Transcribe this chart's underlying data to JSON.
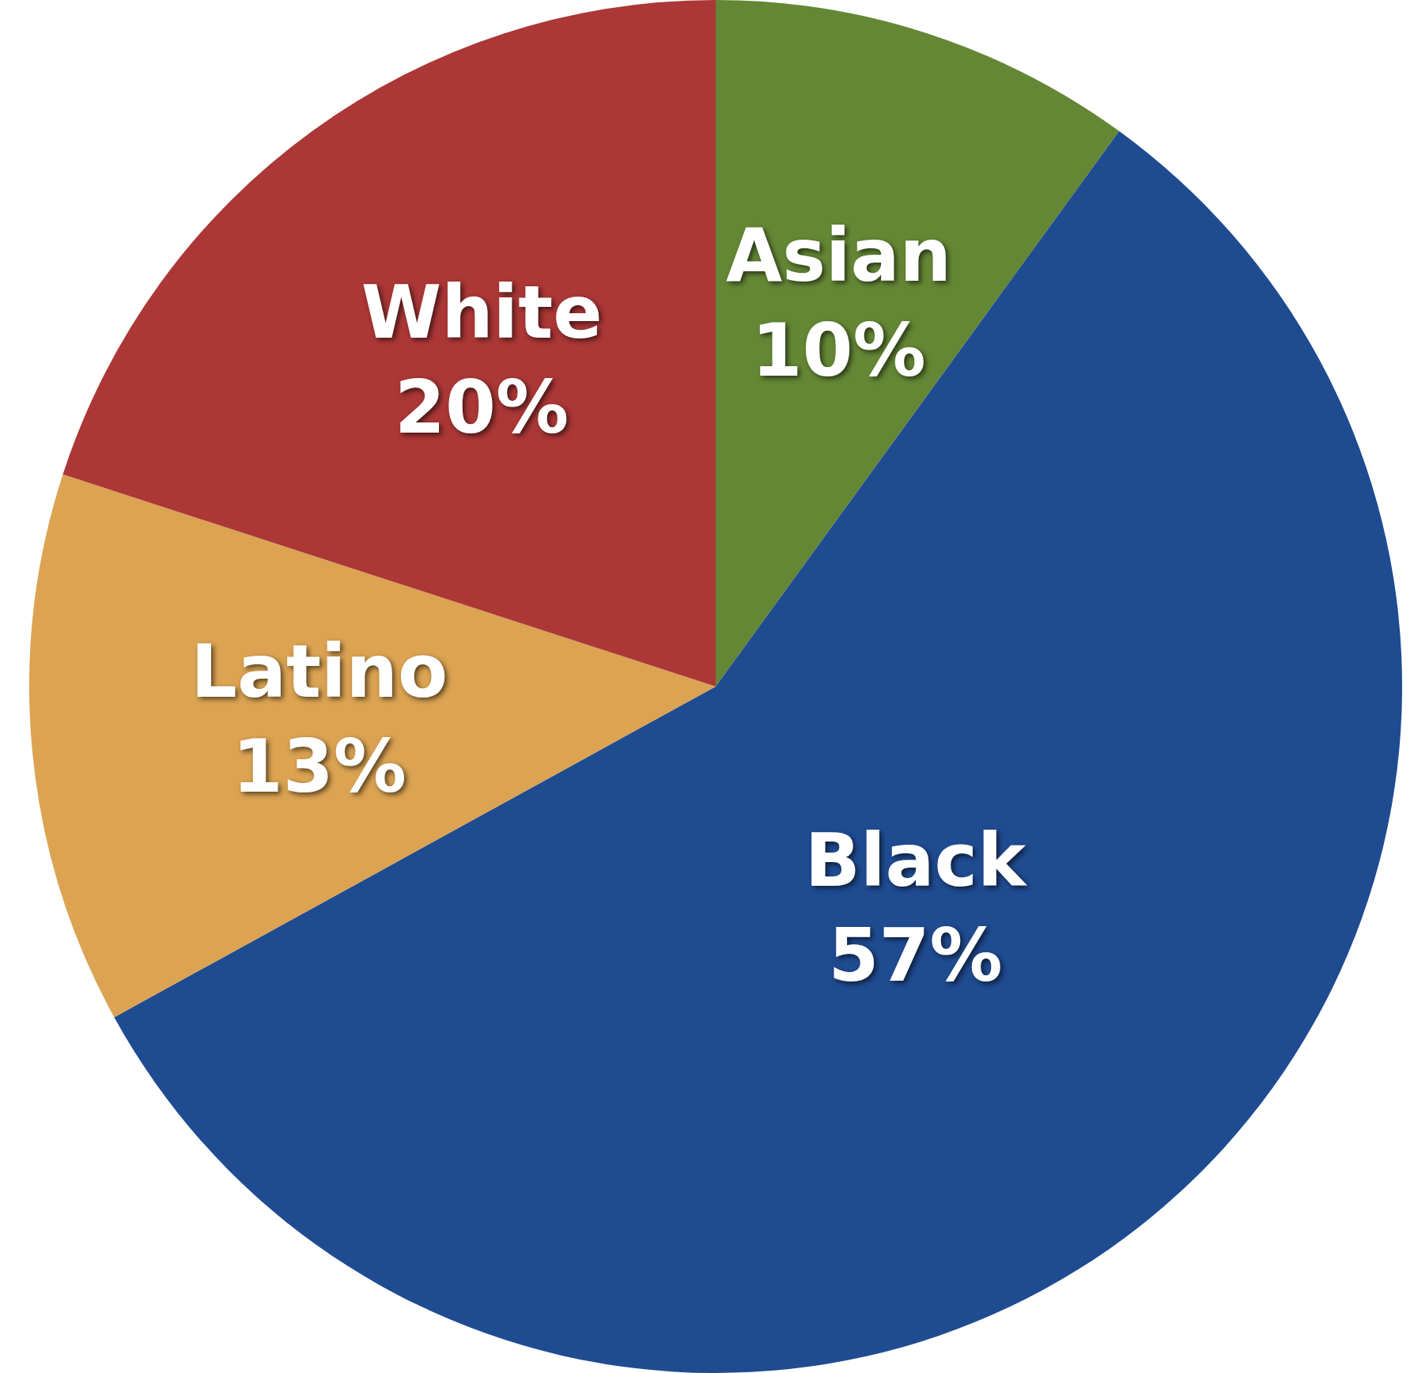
{
  "chart_data": {
    "type": "pie",
    "categories": [
      "Asian",
      "Black",
      "Latino",
      "White"
    ],
    "values": [
      10,
      57,
      13,
      20
    ],
    "colors": [
      "#648735",
      "#1f4b91",
      "#dba352",
      "#ab3736"
    ],
    "value_labels": [
      "10%",
      "57%",
      "13%",
      "20%"
    ]
  }
}
